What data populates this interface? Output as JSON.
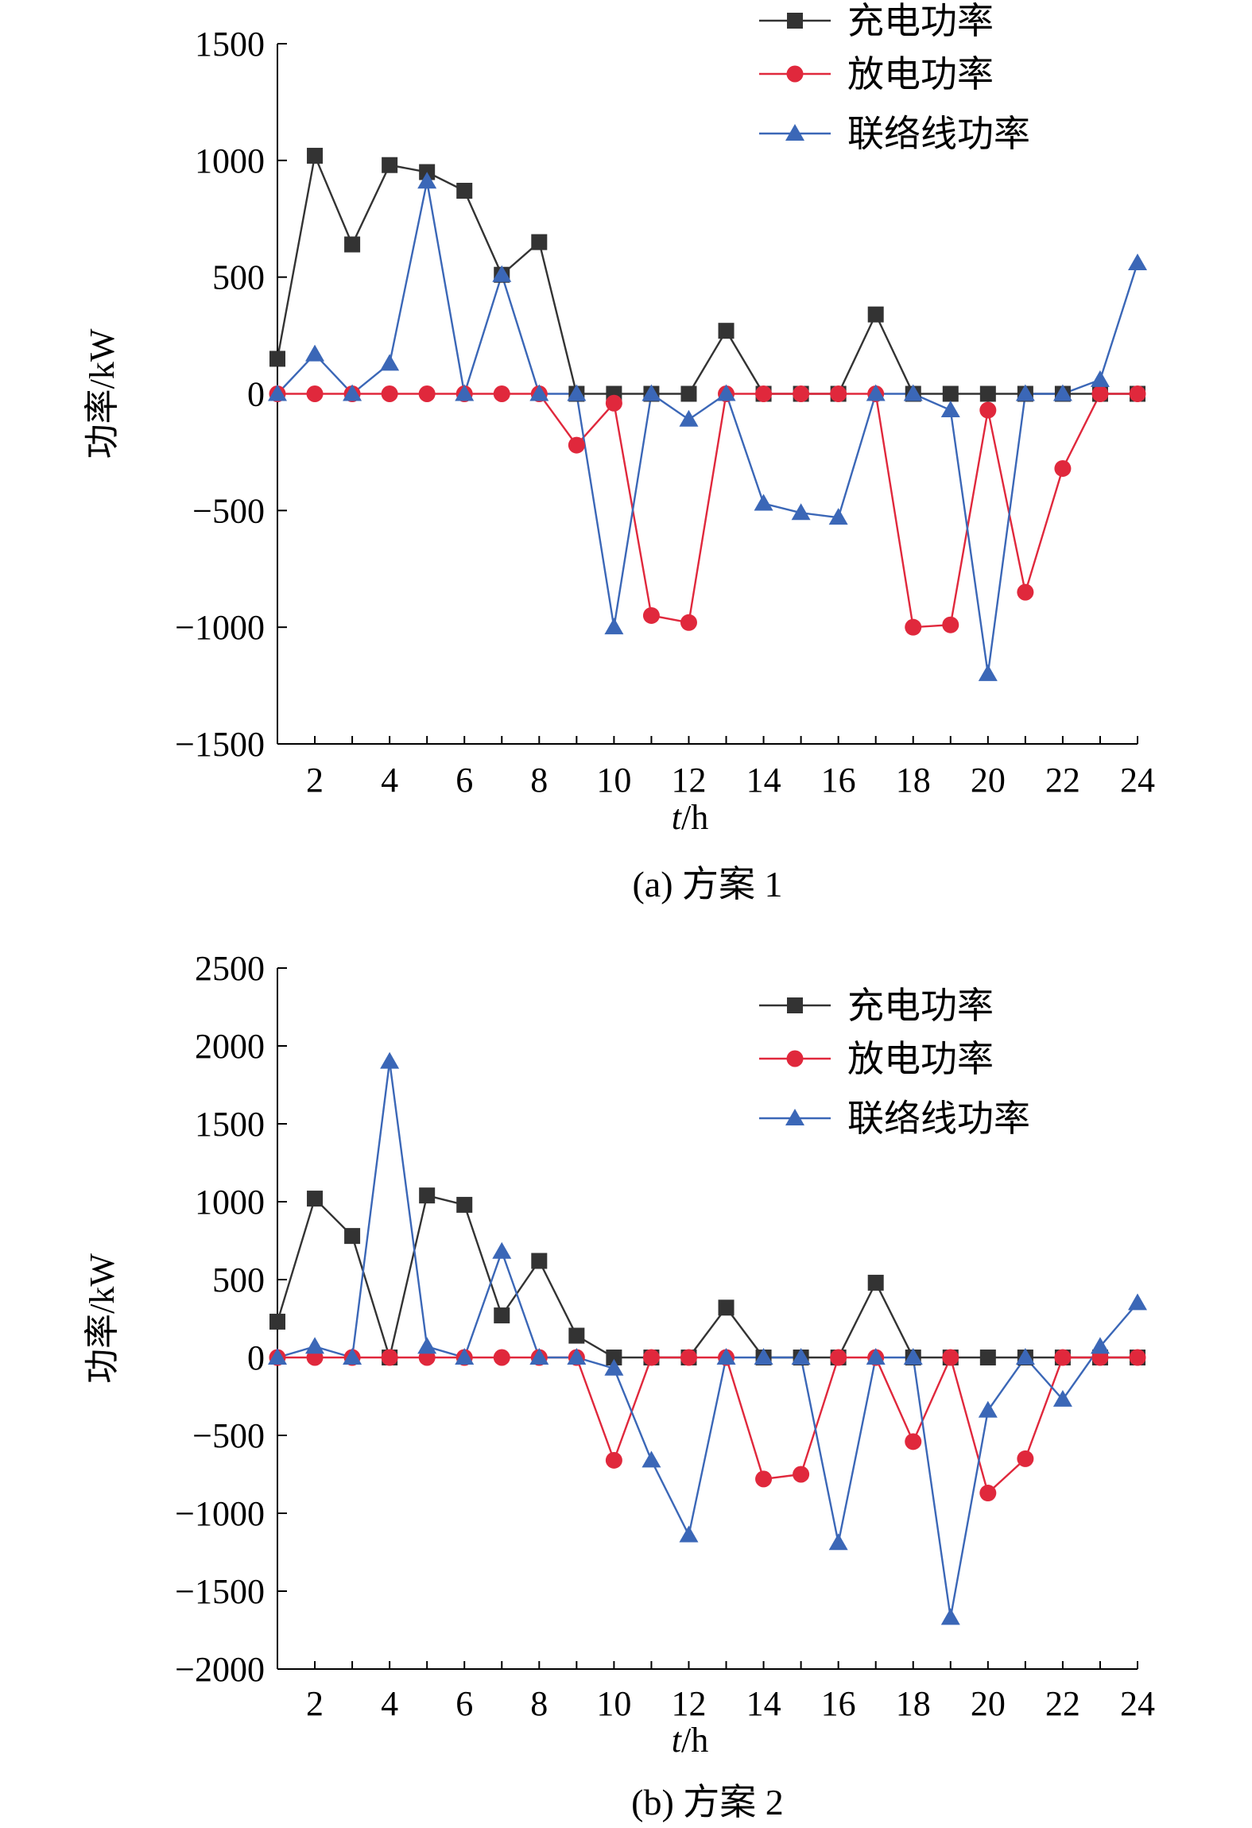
{
  "chart_data": [
    {
      "type": "line",
      "caption": "(a) 方案 1",
      "xlabel_italic": "t",
      "xlabel_rest": "/h",
      "ylabel": "功率/kW",
      "xlim": [
        1,
        24
      ],
      "ylim": [
        -1500,
        1500
      ],
      "xticks": [
        2,
        4,
        6,
        8,
        10,
        12,
        14,
        16,
        18,
        20,
        22,
        24
      ],
      "yticks": [
        -1500,
        -1000,
        -500,
        0,
        500,
        1000,
        1500
      ],
      "legend_position": "top-right",
      "x": [
        1,
        2,
        3,
        4,
        5,
        6,
        7,
        8,
        9,
        10,
        11,
        12,
        13,
        14,
        15,
        16,
        17,
        18,
        19,
        20,
        21,
        22,
        23,
        24
      ],
      "series": [
        {
          "name": "充电功率",
          "color": "#333333",
          "marker": "square",
          "values": [
            150,
            1020,
            640,
            980,
            950,
            870,
            510,
            650,
            0,
            0,
            0,
            0,
            270,
            0,
            0,
            0,
            340,
            0,
            0,
            0,
            0,
            0,
            0,
            0
          ]
        },
        {
          "name": "放电功率",
          "color": "#e0283c",
          "marker": "circle",
          "values": [
            0,
            0,
            0,
            0,
            0,
            0,
            0,
            0,
            -220,
            -40,
            -950,
            -980,
            0,
            0,
            0,
            0,
            0,
            -1000,
            -990,
            -70,
            -850,
            -320,
            0,
            0
          ]
        },
        {
          "name": "联络线功率",
          "color": "#3b67b7",
          "marker": "triangle",
          "values": [
            0,
            170,
            0,
            130,
            910,
            0,
            510,
            0,
            0,
            -1000,
            0,
            -110,
            0,
            -470,
            -510,
            -530,
            0,
            0,
            -70,
            -1200,
            0,
            0,
            60,
            560
          ]
        }
      ]
    },
    {
      "type": "line",
      "caption": "(b) 方案 2",
      "xlabel_italic": "t",
      "xlabel_rest": "/h",
      "ylabel": "功率/kW",
      "xlim": [
        1,
        24
      ],
      "ylim": [
        -2000,
        2500
      ],
      "xticks": [
        2,
        4,
        6,
        8,
        10,
        12,
        14,
        16,
        18,
        20,
        22,
        24
      ],
      "yticks": [
        -2000,
        -1500,
        -1000,
        -500,
        0,
        500,
        1000,
        1500,
        2000,
        2500
      ],
      "legend_position": "top-right",
      "x": [
        1,
        2,
        3,
        4,
        5,
        6,
        7,
        8,
        9,
        10,
        11,
        12,
        13,
        14,
        15,
        16,
        17,
        18,
        19,
        20,
        21,
        22,
        23,
        24
      ],
      "series": [
        {
          "name": "充电功率",
          "color": "#333333",
          "marker": "square",
          "values": [
            230,
            1020,
            780,
            0,
            1040,
            980,
            270,
            620,
            140,
            0,
            0,
            0,
            320,
            0,
            0,
            0,
            480,
            0,
            0,
            0,
            0,
            0,
            0,
            0
          ]
        },
        {
          "name": "放电功率",
          "color": "#e0283c",
          "marker": "circle",
          "values": [
            0,
            0,
            0,
            0,
            0,
            0,
            0,
            0,
            0,
            -660,
            0,
            0,
            0,
            -780,
            -750,
            0,
            0,
            -540,
            0,
            -870,
            -650,
            0,
            0,
            0
          ]
        },
        {
          "name": "联络线功率",
          "color": "#3b67b7",
          "marker": "triangle",
          "values": [
            0,
            70,
            0,
            1900,
            70,
            0,
            680,
            0,
            0,
            -70,
            -660,
            -1140,
            0,
            0,
            0,
            -1190,
            0,
            0,
            -1670,
            -340,
            0,
            -270,
            70,
            350
          ]
        }
      ]
    }
  ]
}
